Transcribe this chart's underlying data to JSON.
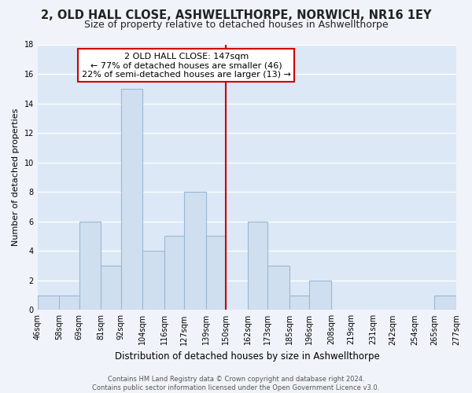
{
  "title": "2, OLD HALL CLOSE, ASHWELLTHORPE, NORWICH, NR16 1EY",
  "subtitle": "Size of property relative to detached houses in Ashwellthorpe",
  "xlabel": "Distribution of detached houses by size in Ashwellthorpe",
  "ylabel": "Number of detached properties",
  "bin_edges": [
    46,
    58,
    69,
    81,
    92,
    104,
    116,
    127,
    139,
    150,
    162,
    173,
    185,
    196,
    208,
    219,
    231,
    242,
    254,
    265,
    277
  ],
  "bin_labels": [
    "46sqm",
    "58sqm",
    "69sqm",
    "81sqm",
    "92sqm",
    "104sqm",
    "116sqm",
    "127sqm",
    "139sqm",
    "150sqm",
    "162sqm",
    "173sqm",
    "185sqm",
    "196sqm",
    "208sqm",
    "219sqm",
    "231sqm",
    "242sqm",
    "254sqm",
    "265sqm",
    "277sqm"
  ],
  "counts": [
    1,
    1,
    6,
    3,
    15,
    4,
    5,
    8,
    5,
    0,
    6,
    3,
    1,
    2,
    0,
    0,
    0,
    0,
    0,
    1
  ],
  "bar_color": "#cfdff0",
  "bar_edge_color": "#9ab8d4",
  "property_line_x": 150,
  "property_line_color": "#cc0000",
  "annotation_text": "2 OLD HALL CLOSE: 147sqm\n← 77% of detached houses are smaller (46)\n22% of semi-detached houses are larger (13) →",
  "annotation_box_color": "#ffffff",
  "annotation_box_edge": "#cc0000",
  "ylim": [
    0,
    18
  ],
  "yticks": [
    0,
    2,
    4,
    6,
    8,
    10,
    12,
    14,
    16,
    18
  ],
  "footer": "Contains HM Land Registry data © Crown copyright and database right 2024.\nContains public sector information licensed under the Open Government Licence v3.0.",
  "outer_bg_color": "#f0f4fa",
  "plot_bg_color": "#dce8f5",
  "grid_color": "#ffffff",
  "title_fontsize": 10.5,
  "subtitle_fontsize": 9,
  "xlabel_fontsize": 8.5,
  "ylabel_fontsize": 8,
  "tick_fontsize": 7,
  "annotation_fontsize": 8,
  "footer_fontsize": 6
}
